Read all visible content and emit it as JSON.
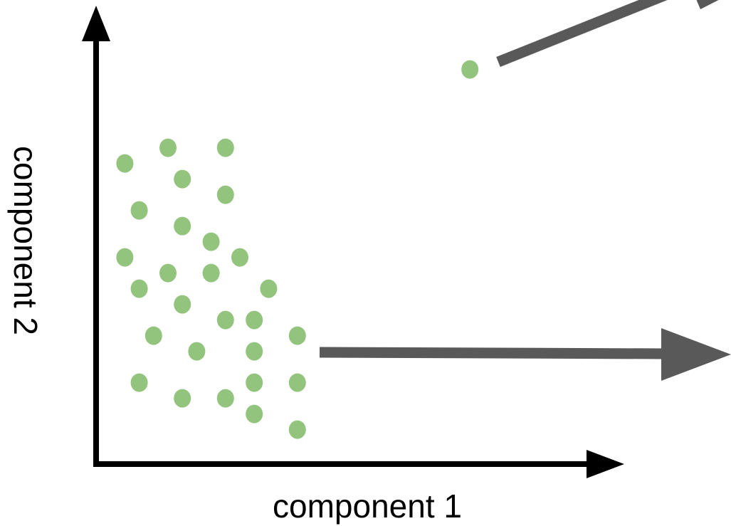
{
  "labels": {
    "x_axis": "component 1",
    "y_axis": "component 2"
  },
  "colors": {
    "axis": "#000000",
    "points": "#92c47d",
    "arrows": "#595959"
  },
  "chart_data": {
    "type": "scatter",
    "xlabel": "component 1",
    "ylabel": "component 2",
    "series": [
      {
        "values": [
          [
            1.0,
            9.3
          ],
          [
            2.5,
            9.8
          ],
          [
            4.5,
            9.8
          ],
          [
            3.0,
            8.8
          ],
          [
            4.5,
            8.3
          ],
          [
            1.5,
            7.8
          ],
          [
            3.0,
            7.3
          ],
          [
            4.0,
            6.8
          ],
          [
            5.0,
            6.3
          ],
          [
            1.0,
            6.3
          ],
          [
            2.5,
            5.8
          ],
          [
            4.0,
            5.8
          ],
          [
            1.5,
            5.3
          ],
          [
            6.0,
            5.3
          ],
          [
            3.0,
            4.8
          ],
          [
            4.5,
            4.3
          ],
          [
            5.5,
            4.3
          ],
          [
            2.0,
            3.8
          ],
          [
            7.0,
            3.8
          ],
          [
            3.5,
            3.3
          ],
          [
            5.5,
            3.3
          ],
          [
            1.5,
            2.3
          ],
          [
            5.5,
            2.3
          ],
          [
            7.0,
            2.3
          ],
          [
            3.0,
            1.8
          ],
          [
            4.5,
            1.8
          ],
          [
            5.5,
            1.3
          ],
          [
            7.0,
            0.8
          ],
          [
            13.0,
            12.3
          ]
        ]
      }
    ],
    "xlim": [
      0,
      18
    ],
    "ylim": [
      -1,
      14
    ],
    "grid": false
  }
}
